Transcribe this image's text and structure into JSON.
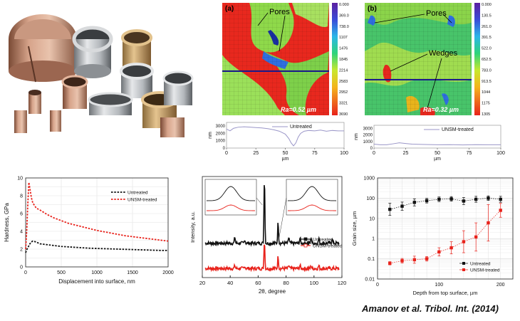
{
  "citation": "Amanov et al. Tribol. Int. (2014)",
  "maps": {
    "a": {
      "panel": "(a)",
      "pores_label": "Pores",
      "ra": "Ra=0.52 µm",
      "colorbar": [
        "0.000",
        "369.0",
        "738.0",
        "1107",
        "1476",
        "1845",
        "2214",
        "2583",
        "2952",
        "3321",
        "3690"
      ]
    },
    "b": {
      "panel": "(b)",
      "pores_label": "Pores",
      "wedges_label": "Wedges",
      "ra": "Ra=0.32 µm",
      "colorbar": [
        "0.000",
        "130.5",
        "261.0",
        "391.5",
        "522.0",
        "652.5",
        "783.0",
        "913.5",
        "1044",
        "1175",
        "1305"
      ]
    }
  },
  "chart_data": [
    {
      "id": "profile-untreated",
      "type": "line",
      "legend": "Untreated",
      "xlabel": "µm",
      "ylabel": "nm",
      "xticks": [
        0,
        25,
        50,
        75,
        100
      ],
      "yticks": [
        0,
        1000,
        2000,
        3000
      ],
      "xlim": [
        0,
        100
      ],
      "ylim": [
        0,
        3500
      ],
      "x": [
        0,
        3,
        6,
        10,
        15,
        20,
        25,
        30,
        35,
        40,
        45,
        50,
        53,
        55,
        57,
        59,
        61,
        63,
        66,
        70,
        75,
        80,
        85,
        90,
        95,
        100
      ],
      "y": [
        2600,
        2350,
        2700,
        2850,
        2900,
        2850,
        2800,
        2750,
        2650,
        2500,
        2300,
        1900,
        1300,
        700,
        300,
        700,
        1500,
        2000,
        2300,
        2400,
        2350,
        2450,
        2300,
        2400,
        2350,
        2350
      ],
      "color": "#9a96c8"
    },
    {
      "id": "profile-unsm",
      "type": "line",
      "legend": "UNSM-treated",
      "xlabel": "µm",
      "ylabel": "nm",
      "xticks": [
        0,
        25,
        50,
        75,
        100
      ],
      "yticks": [
        0,
        1000,
        2000,
        3000
      ],
      "xlim": [
        0,
        100
      ],
      "ylim": [
        0,
        3500
      ],
      "x": [
        0,
        5,
        10,
        15,
        20,
        25,
        30,
        40,
        50,
        60,
        70,
        80,
        90,
        100
      ],
      "y": [
        600,
        500,
        500,
        650,
        800,
        700,
        600,
        550,
        500,
        520,
        480,
        520,
        500,
        500
      ],
      "color": "#9a96c8"
    },
    {
      "id": "hardness",
      "type": "line",
      "xlabel": "Displacement into surface, nm",
      "ylabel": "Hardness, GPa",
      "xticks": [
        0,
        500,
        1000,
        1500,
        2000
      ],
      "yticks": [
        0,
        2,
        4,
        6,
        8,
        10
      ],
      "xlim": [
        0,
        2000
      ],
      "ylim": [
        0,
        10
      ],
      "series": [
        {
          "name": "Untreated",
          "color": "#111111",
          "x": [
            0,
            20,
            40,
            60,
            80,
            100,
            150,
            200,
            300,
            400,
            500,
            700,
            900,
            1100,
            1300,
            1500,
            1700,
            1900,
            2000
          ],
          "y": [
            1.6,
            2.0,
            2.3,
            2.6,
            2.8,
            2.9,
            2.8,
            2.6,
            2.5,
            2.4,
            2.3,
            2.2,
            2.1,
            2.05,
            2.0,
            1.95,
            1.9,
            1.85,
            1.85
          ]
        },
        {
          "name": "UNSM-treated",
          "color": "#e8221b",
          "x": [
            0,
            15,
            30,
            45,
            60,
            80,
            100,
            150,
            200,
            300,
            400,
            500,
            600,
            700,
            800,
            900,
            1000,
            1200,
            1400,
            1600,
            1800,
            2000
          ],
          "y": [
            2.0,
            4.0,
            7.0,
            9.5,
            8.8,
            7.8,
            7.2,
            6.6,
            6.4,
            5.9,
            5.5,
            5.2,
            4.9,
            4.7,
            4.5,
            4.3,
            4.1,
            3.8,
            3.5,
            3.3,
            3.1,
            2.9
          ]
        }
      ]
    },
    {
      "id": "xrd",
      "type": "line",
      "xlabel": "2θ, degree",
      "ylabel": "Intensity, a.u.",
      "xticks": [
        20,
        40,
        60,
        80,
        100,
        120
      ],
      "xlim": [
        20,
        120
      ],
      "ylim": [
        0,
        10
      ],
      "series": [
        {
          "name": "Untreated",
          "color": "#111111",
          "baseline": 3.4,
          "peaks": [
            [
              43.3,
              0.6
            ],
            [
              50.4,
              0.4
            ],
            [
              64.5,
              6.6
            ],
            [
              74.3,
              2.1
            ],
            [
              82.0,
              0.6
            ],
            [
              90,
              0.5
            ],
            [
              98,
              0.6
            ],
            [
              103.5,
              0.5
            ],
            [
              113,
              0.5
            ]
          ]
        },
        {
          "name": "UNSM-treated",
          "color": "#e8221b",
          "baseline": 0.9,
          "peaks": [
            [
              43.3,
              0.3
            ],
            [
              50.4,
              0.25
            ],
            [
              64.5,
              2.8
            ],
            [
              74.3,
              1.2
            ],
            [
              82.0,
              0.3
            ],
            [
              90,
              0.3
            ],
            [
              98,
              0.3
            ],
            [
              103.5,
              0.3
            ]
          ]
        }
      ]
    },
    {
      "id": "grain",
      "type": "scatter",
      "xlabel": "Depth from top surface, µm",
      "ylabel": "Grain size, µm",
      "xticks": [
        0,
        20,
        40,
        60,
        80,
        100,
        120,
        140,
        160,
        180,
        200,
        220
      ],
      "yticks": [
        0.01,
        0.1,
        1,
        10,
        100,
        1000
      ],
      "ytick_labels": [
        "0.01",
        "0.1",
        "1",
        "10",
        "100",
        "1000"
      ],
      "xlim": [
        0,
        220
      ],
      "ylim": [
        0.01,
        1000
      ],
      "log_y": true,
      "legend_position": "bottom-right",
      "series": [
        {
          "name": "Untreated",
          "color": "#111111",
          "x": [
            20,
            40,
            60,
            80,
            100,
            120,
            140,
            160,
            180,
            200
          ],
          "y": [
            28,
            40,
            62,
            75,
            88,
            92,
            72,
            88,
            100,
            88
          ],
          "err": [
            2.0,
            1.6,
            1.5,
            1.3,
            1.3,
            1.3,
            1.5,
            1.4,
            1.3,
            1.4
          ]
        },
        {
          "name": "UNSM-treated",
          "color": "#e8221b",
          "x": [
            20,
            40,
            60,
            80,
            100,
            120,
            140,
            160,
            180,
            200
          ],
          "y": [
            0.06,
            0.08,
            0.09,
            0.1,
            0.22,
            0.35,
            0.7,
            1.2,
            6,
            25
          ],
          "err": [
            1.2,
            1.3,
            1.5,
            1.3,
            1.6,
            2.0,
            3.5,
            5,
            8,
            2.2
          ]
        }
      ]
    }
  ]
}
